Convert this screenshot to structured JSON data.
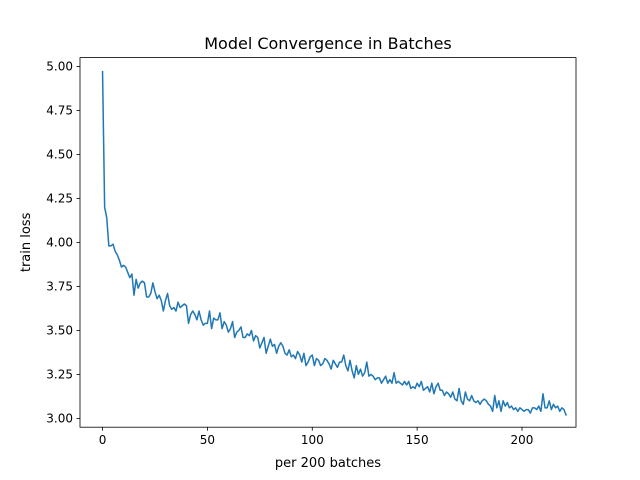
{
  "chart_data": {
    "type": "line",
    "title": "Model Convergence in Batches",
    "xlabel": "per 200 batches",
    "ylabel": "train loss",
    "xlim": [
      -10.75,
      225.75
    ],
    "ylim": [
      2.95,
      5.05
    ],
    "xticks": [
      0,
      50,
      100,
      150,
      200
    ],
    "yticks": [
      3.0,
      3.25,
      3.5,
      3.75,
      4.0,
      4.25,
      4.5,
      4.75,
      5.0
    ],
    "ytick_labels": [
      "3.00",
      "3.25",
      "3.50",
      "3.75",
      "4.00",
      "4.25",
      "4.50",
      "4.75",
      "5.00"
    ],
    "grid": false,
    "series": [
      {
        "color": "#1f77b4",
        "x_start": 0,
        "x_step": 1,
        "values": [
          4.97,
          4.2,
          4.14,
          3.98,
          3.98,
          3.99,
          3.95,
          3.93,
          3.9,
          3.86,
          3.87,
          3.86,
          3.83,
          3.8,
          3.82,
          3.7,
          3.79,
          3.74,
          3.77,
          3.78,
          3.77,
          3.69,
          3.69,
          3.71,
          3.77,
          3.72,
          3.68,
          3.7,
          3.67,
          3.61,
          3.67,
          3.71,
          3.64,
          3.62,
          3.63,
          3.61,
          3.66,
          3.63,
          3.64,
          3.65,
          3.64,
          3.54,
          3.59,
          3.61,
          3.59,
          3.56,
          3.61,
          3.56,
          3.53,
          3.54,
          3.54,
          3.61,
          3.51,
          3.57,
          3.56,
          3.56,
          3.6,
          3.51,
          3.55,
          3.53,
          3.49,
          3.51,
          3.55,
          3.46,
          3.49,
          3.5,
          3.52,
          3.46,
          3.46,
          3.48,
          3.47,
          3.5,
          3.44,
          3.47,
          3.46,
          3.4,
          3.43,
          3.46,
          3.37,
          3.41,
          3.45,
          3.41,
          3.42,
          3.37,
          3.41,
          3.43,
          3.41,
          3.37,
          3.36,
          3.39,
          3.35,
          3.36,
          3.34,
          3.38,
          3.36,
          3.32,
          3.37,
          3.3,
          3.32,
          3.35,
          3.36,
          3.3,
          3.34,
          3.33,
          3.3,
          3.31,
          3.34,
          3.33,
          3.31,
          3.28,
          3.33,
          3.31,
          3.29,
          3.32,
          3.32,
          3.36,
          3.3,
          3.27,
          3.33,
          3.27,
          3.23,
          3.3,
          3.25,
          3.28,
          3.24,
          3.26,
          3.32,
          3.24,
          3.25,
          3.24,
          3.22,
          3.23,
          3.23,
          3.2,
          3.22,
          3.24,
          3.2,
          3.22,
          3.2,
          3.26,
          3.2,
          3.21,
          3.2,
          3.19,
          3.21,
          3.19,
          3.21,
          3.17,
          3.18,
          3.17,
          3.2,
          3.18,
          3.21,
          3.16,
          3.17,
          3.18,
          3.15,
          3.2,
          3.14,
          3.18,
          3.2,
          3.16,
          3.16,
          3.13,
          3.15,
          3.14,
          3.12,
          3.15,
          3.11,
          3.1,
          3.17,
          3.1,
          3.08,
          3.15,
          3.11,
          3.1,
          3.13,
          3.1,
          3.09,
          3.1,
          3.08,
          3.1,
          3.11,
          3.1,
          3.08,
          3.07,
          3.04,
          3.13,
          3.06,
          3.1,
          3.04,
          3.1,
          3.07,
          3.09,
          3.06,
          3.07,
          3.05,
          3.06,
          3.04,
          3.06,
          3.05,
          3.04,
          3.05,
          3.05,
          3.03,
          3.06,
          3.06,
          3.05,
          3.07,
          3.04,
          3.14,
          3.06,
          3.06,
          3.1,
          3.05,
          3.08,
          3.06,
          3.07,
          3.04,
          3.06,
          3.05,
          3.02
        ]
      }
    ]
  }
}
